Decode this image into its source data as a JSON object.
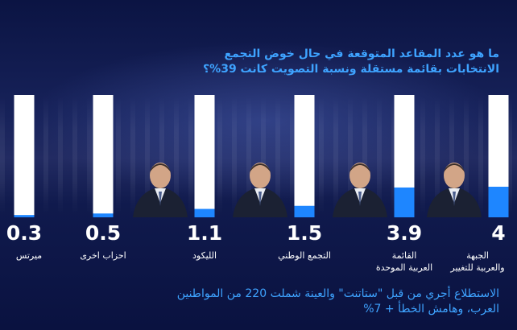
{
  "title_lines": [
    "ما هو عدد المقاعد المتوقعة في حال خوض التجمع",
    "الانتخابات بقائمة مستقلة ونسبة التصويت كانت 39%؟"
  ],
  "footnote_lines": [
    "الاستطلاع أجري من قبل \"ستاتنت\" والعينة شملت 220 من المواطنين",
    "العرب، وهامش الخطأ + 7%"
  ],
  "chart_data": {
    "type": "bar",
    "orientation": "vertical",
    "categories": [
      "ميرتس",
      "احزاب اخرى",
      "الليكود",
      "التجمع الوطني",
      "القائمة العربية الموحدة",
      "الجبهة والعربية للتغيير"
    ],
    "category_lines": [
      [
        "ميرتس"
      ],
      [
        "احزاب اخرى"
      ],
      [
        "الليكود"
      ],
      [
        "التجمع الوطني"
      ],
      [
        "القائمة",
        "العربية الموحدة"
      ],
      [
        "الجبهة",
        "والعربية للتغيير"
      ]
    ],
    "values": [
      0.3,
      0.5,
      1.1,
      1.5,
      3.9,
      4
    ],
    "value_labels": [
      "0.3",
      "0.5",
      "1.1",
      "1.5",
      "3.9",
      "4"
    ],
    "ylim": [
      0,
      16
    ],
    "grid": false,
    "legend": "none",
    "bar_fill_color": "#1e86ff",
    "bar_track_color": "#ffffff",
    "photos": [
      "none",
      "none",
      "portrait",
      "portrait",
      "portrait",
      "portrait"
    ]
  },
  "colors": {
    "accent": "#3ea3ff",
    "background": "#0b1340"
  }
}
